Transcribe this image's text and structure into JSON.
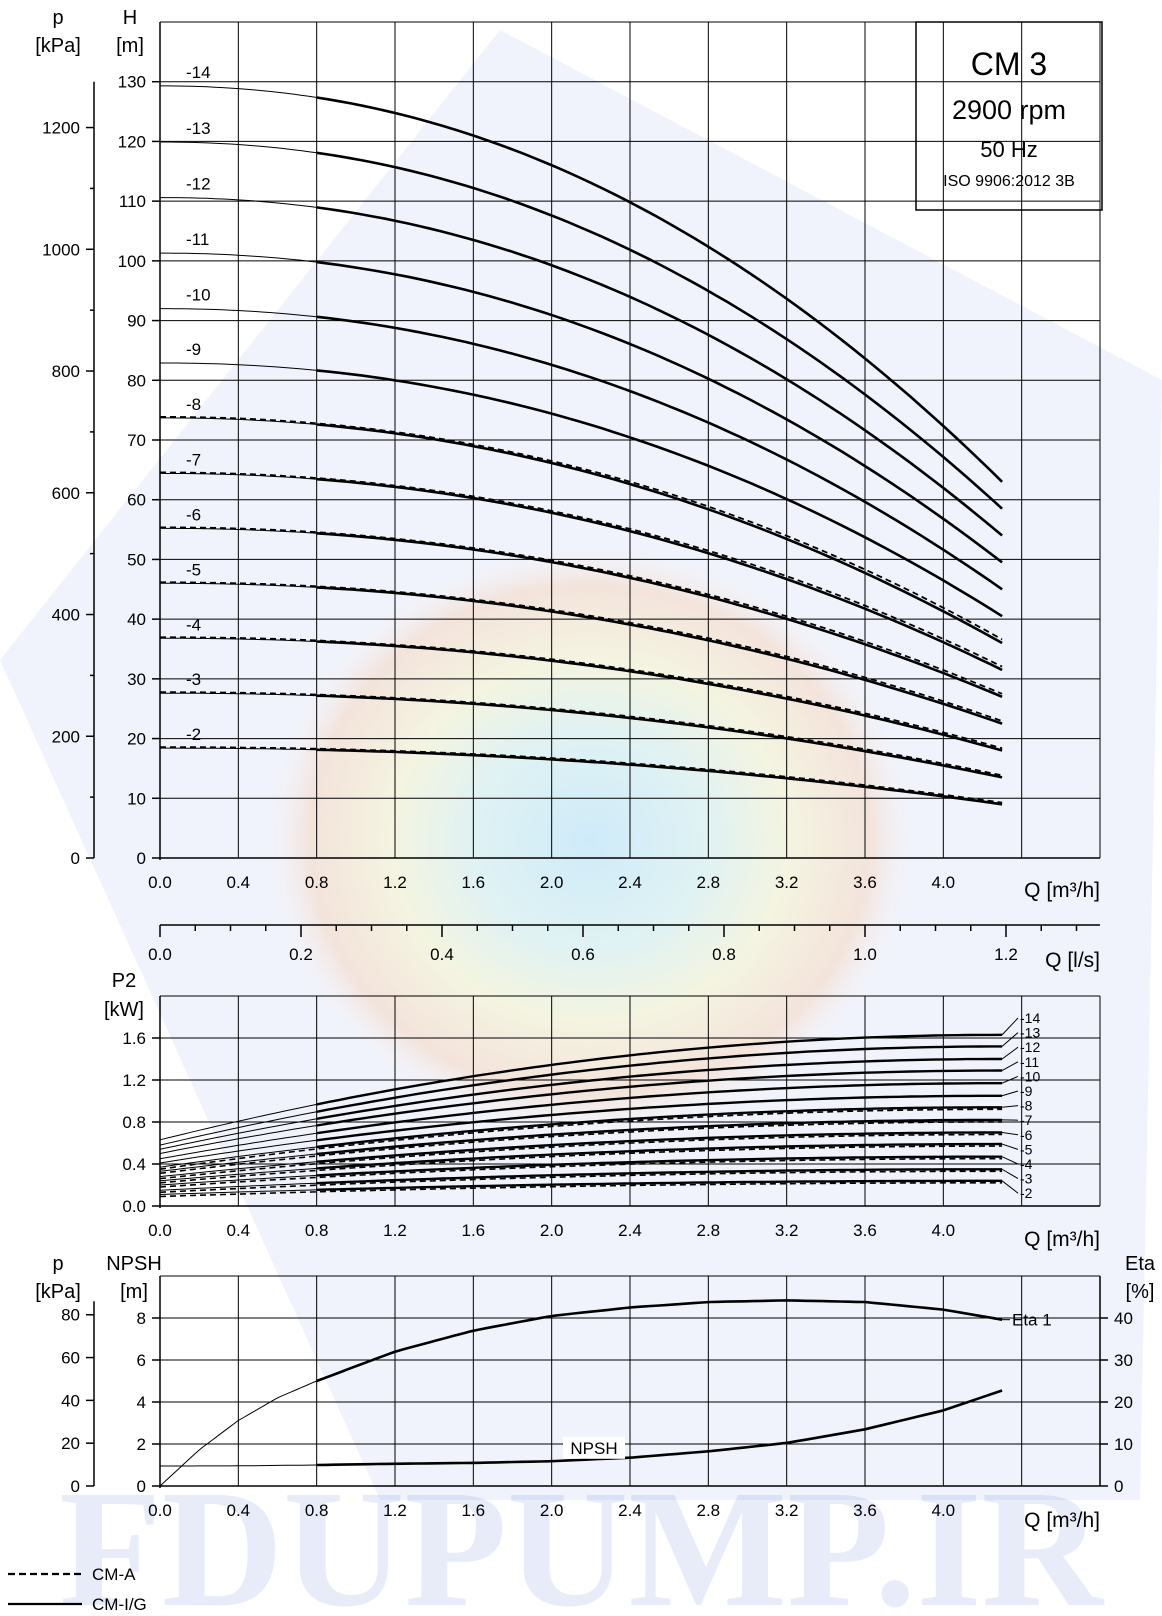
{
  "info_box": {
    "model": "CM 3",
    "speed": "2900 rpm",
    "frequency": "50 Hz",
    "standard": "ISO 9906:2012 3B"
  },
  "watermark": "FDUPUMP.IR",
  "legend": {
    "dashed_label": "CM-A",
    "solid_label": "CM-I/G"
  },
  "chart_data": [
    {
      "id": "head",
      "type": "line",
      "left_axis_title": "p",
      "left_axis_unit": "[kPa]",
      "y_axis_title": "H",
      "y_axis_unit": "[m]",
      "x_axis_label": "Q [m³/h]",
      "secondary_x_axis_label": "Q [l/s]",
      "x_ticks": [
        "0.0",
        "0.4",
        "0.8",
        "1.2",
        "1.6",
        "2.0",
        "2.4",
        "2.8",
        "3.2",
        "3.6",
        "4.0"
      ],
      "y_ticks": [
        "0",
        "10",
        "20",
        "30",
        "40",
        "50",
        "60",
        "70",
        "80",
        "90",
        "100",
        "110",
        "120",
        "130"
      ],
      "p_ticks": [
        "0",
        "200",
        "400",
        "600",
        "800",
        "1000",
        "1200"
      ],
      "secondary_x_ticks": [
        "0.0",
        "0.2",
        "0.4",
        "0.6",
        "0.8",
        "1.0",
        "1.2"
      ],
      "xlim": [
        0,
        4.8
      ],
      "ylim": [
        0,
        140
      ],
      "grid": true,
      "thin_segment_end_q": 0.8,
      "series": [
        {
          "name": "-14",
          "shutoff": 129.3,
          "end_h": 63.0
        },
        {
          "name": "-13",
          "shutoff": 119.9,
          "end_h": 58.5
        },
        {
          "name": "-12",
          "shutoff": 110.6,
          "end_h": 54.0
        },
        {
          "name": "-11",
          "shutoff": 101.3,
          "end_h": 49.5
        },
        {
          "name": "-10",
          "shutoff": 92.0,
          "end_h": 45.0
        },
        {
          "name": "-9",
          "shutoff": 82.9,
          "end_h": 40.5
        },
        {
          "name": "-8",
          "shutoff": 73.7,
          "end_h": 36.0
        },
        {
          "name": "-7",
          "shutoff": 64.4,
          "end_h": 31.5
        },
        {
          "name": "-6",
          "shutoff": 55.2,
          "end_h": 27.0
        },
        {
          "name": "-5",
          "shutoff": 46.0,
          "end_h": 22.5
        },
        {
          "name": "-4",
          "shutoff": 36.8,
          "end_h": 18.0
        },
        {
          "name": "-3",
          "shutoff": 27.6,
          "end_h": 13.5
        },
        {
          "name": "-2",
          "shutoff": 18.4,
          "end_h": 9.0
        }
      ],
      "q_end": 4.3
    },
    {
      "id": "power",
      "type": "line",
      "y_axis_title": "P2",
      "y_axis_unit": "[kW]",
      "x_axis_label": "Q [m³/h]",
      "x_ticks": [
        "0.0",
        "0.4",
        "0.8",
        "1.2",
        "1.6",
        "2.0",
        "2.4",
        "2.8",
        "3.2",
        "3.6",
        "4.0"
      ],
      "y_ticks": [
        "0.0",
        "0.4",
        "0.8",
        "1.2",
        "1.6"
      ],
      "xlim": [
        0,
        4.8
      ],
      "ylim": [
        0,
        2.0
      ],
      "grid": true,
      "series": [
        {
          "name": "-14",
          "at_zero": 0.63,
          "end_p": 1.63
        },
        {
          "name": "-13",
          "at_zero": 0.58,
          "end_p": 1.52
        },
        {
          "name": "-12",
          "at_zero": 0.54,
          "end_p": 1.4
        },
        {
          "name": "-11",
          "at_zero": 0.5,
          "end_p": 1.29
        },
        {
          "name": "-10",
          "at_zero": 0.45,
          "end_p": 1.17
        },
        {
          "name": "-9",
          "at_zero": 0.41,
          "end_p": 1.05
        },
        {
          "name": "-8",
          "at_zero": 0.37,
          "end_p": 0.94
        },
        {
          "name": "-7",
          "at_zero": 0.33,
          "end_p": 0.82
        },
        {
          "name": "-6",
          "at_zero": 0.28,
          "end_p": 0.7
        },
        {
          "name": "-5",
          "at_zero": 0.24,
          "end_p": 0.59
        },
        {
          "name": "-4",
          "at_zero": 0.2,
          "end_p": 0.47
        },
        {
          "name": "-3",
          "at_zero": 0.15,
          "end_p": 0.35
        },
        {
          "name": "-2",
          "at_zero": 0.11,
          "end_p": 0.24
        }
      ],
      "q_end": 4.3
    },
    {
      "id": "npsh_eta",
      "type": "line",
      "left_axis_title": "p",
      "left_axis_unit": "[kPa]",
      "y_axis_title": "NPSH",
      "y_axis_unit": "[m]",
      "right_axis_title": "Eta",
      "right_axis_unit": "[%]",
      "x_axis_label": "Q [m³/h]",
      "x_ticks": [
        "0.0",
        "0.4",
        "0.8",
        "1.2",
        "1.6",
        "2.0",
        "2.4",
        "2.8",
        "3.2",
        "3.6",
        "4.0"
      ],
      "y_ticks": [
        "0",
        "2",
        "4",
        "6",
        "8"
      ],
      "p_ticks": [
        "0",
        "20",
        "40",
        "60",
        "80"
      ],
      "eta_ticks": [
        "0",
        "10",
        "20",
        "30",
        "40"
      ],
      "xlim": [
        0,
        4.8
      ],
      "ylim": [
        0,
        10
      ],
      "eta_lim": [
        0,
        50
      ],
      "grid": true,
      "eta_series": {
        "name": "Eta 1",
        "q": [
          0.0,
          0.2,
          0.4,
          0.6,
          0.8,
          1.2,
          1.6,
          2.0,
          2.4,
          2.8,
          3.2,
          3.6,
          4.0,
          4.3
        ],
        "eta": [
          0.0,
          8.6,
          15.6,
          21.0,
          25.0,
          32.0,
          37.0,
          40.5,
          42.5,
          43.8,
          44.2,
          43.8,
          42.0,
          39.6
        ]
      },
      "npsh_series": {
        "name": "NPSH",
        "q": [
          0.0,
          0.4,
          0.8,
          1.2,
          1.6,
          2.0,
          2.4,
          2.8,
          3.2,
          3.6,
          4.0,
          4.3
        ],
        "npsh": [
          0.95,
          0.96,
          1.0,
          1.06,
          1.1,
          1.18,
          1.35,
          1.65,
          2.05,
          2.7,
          3.6,
          4.55
        ]
      }
    }
  ]
}
